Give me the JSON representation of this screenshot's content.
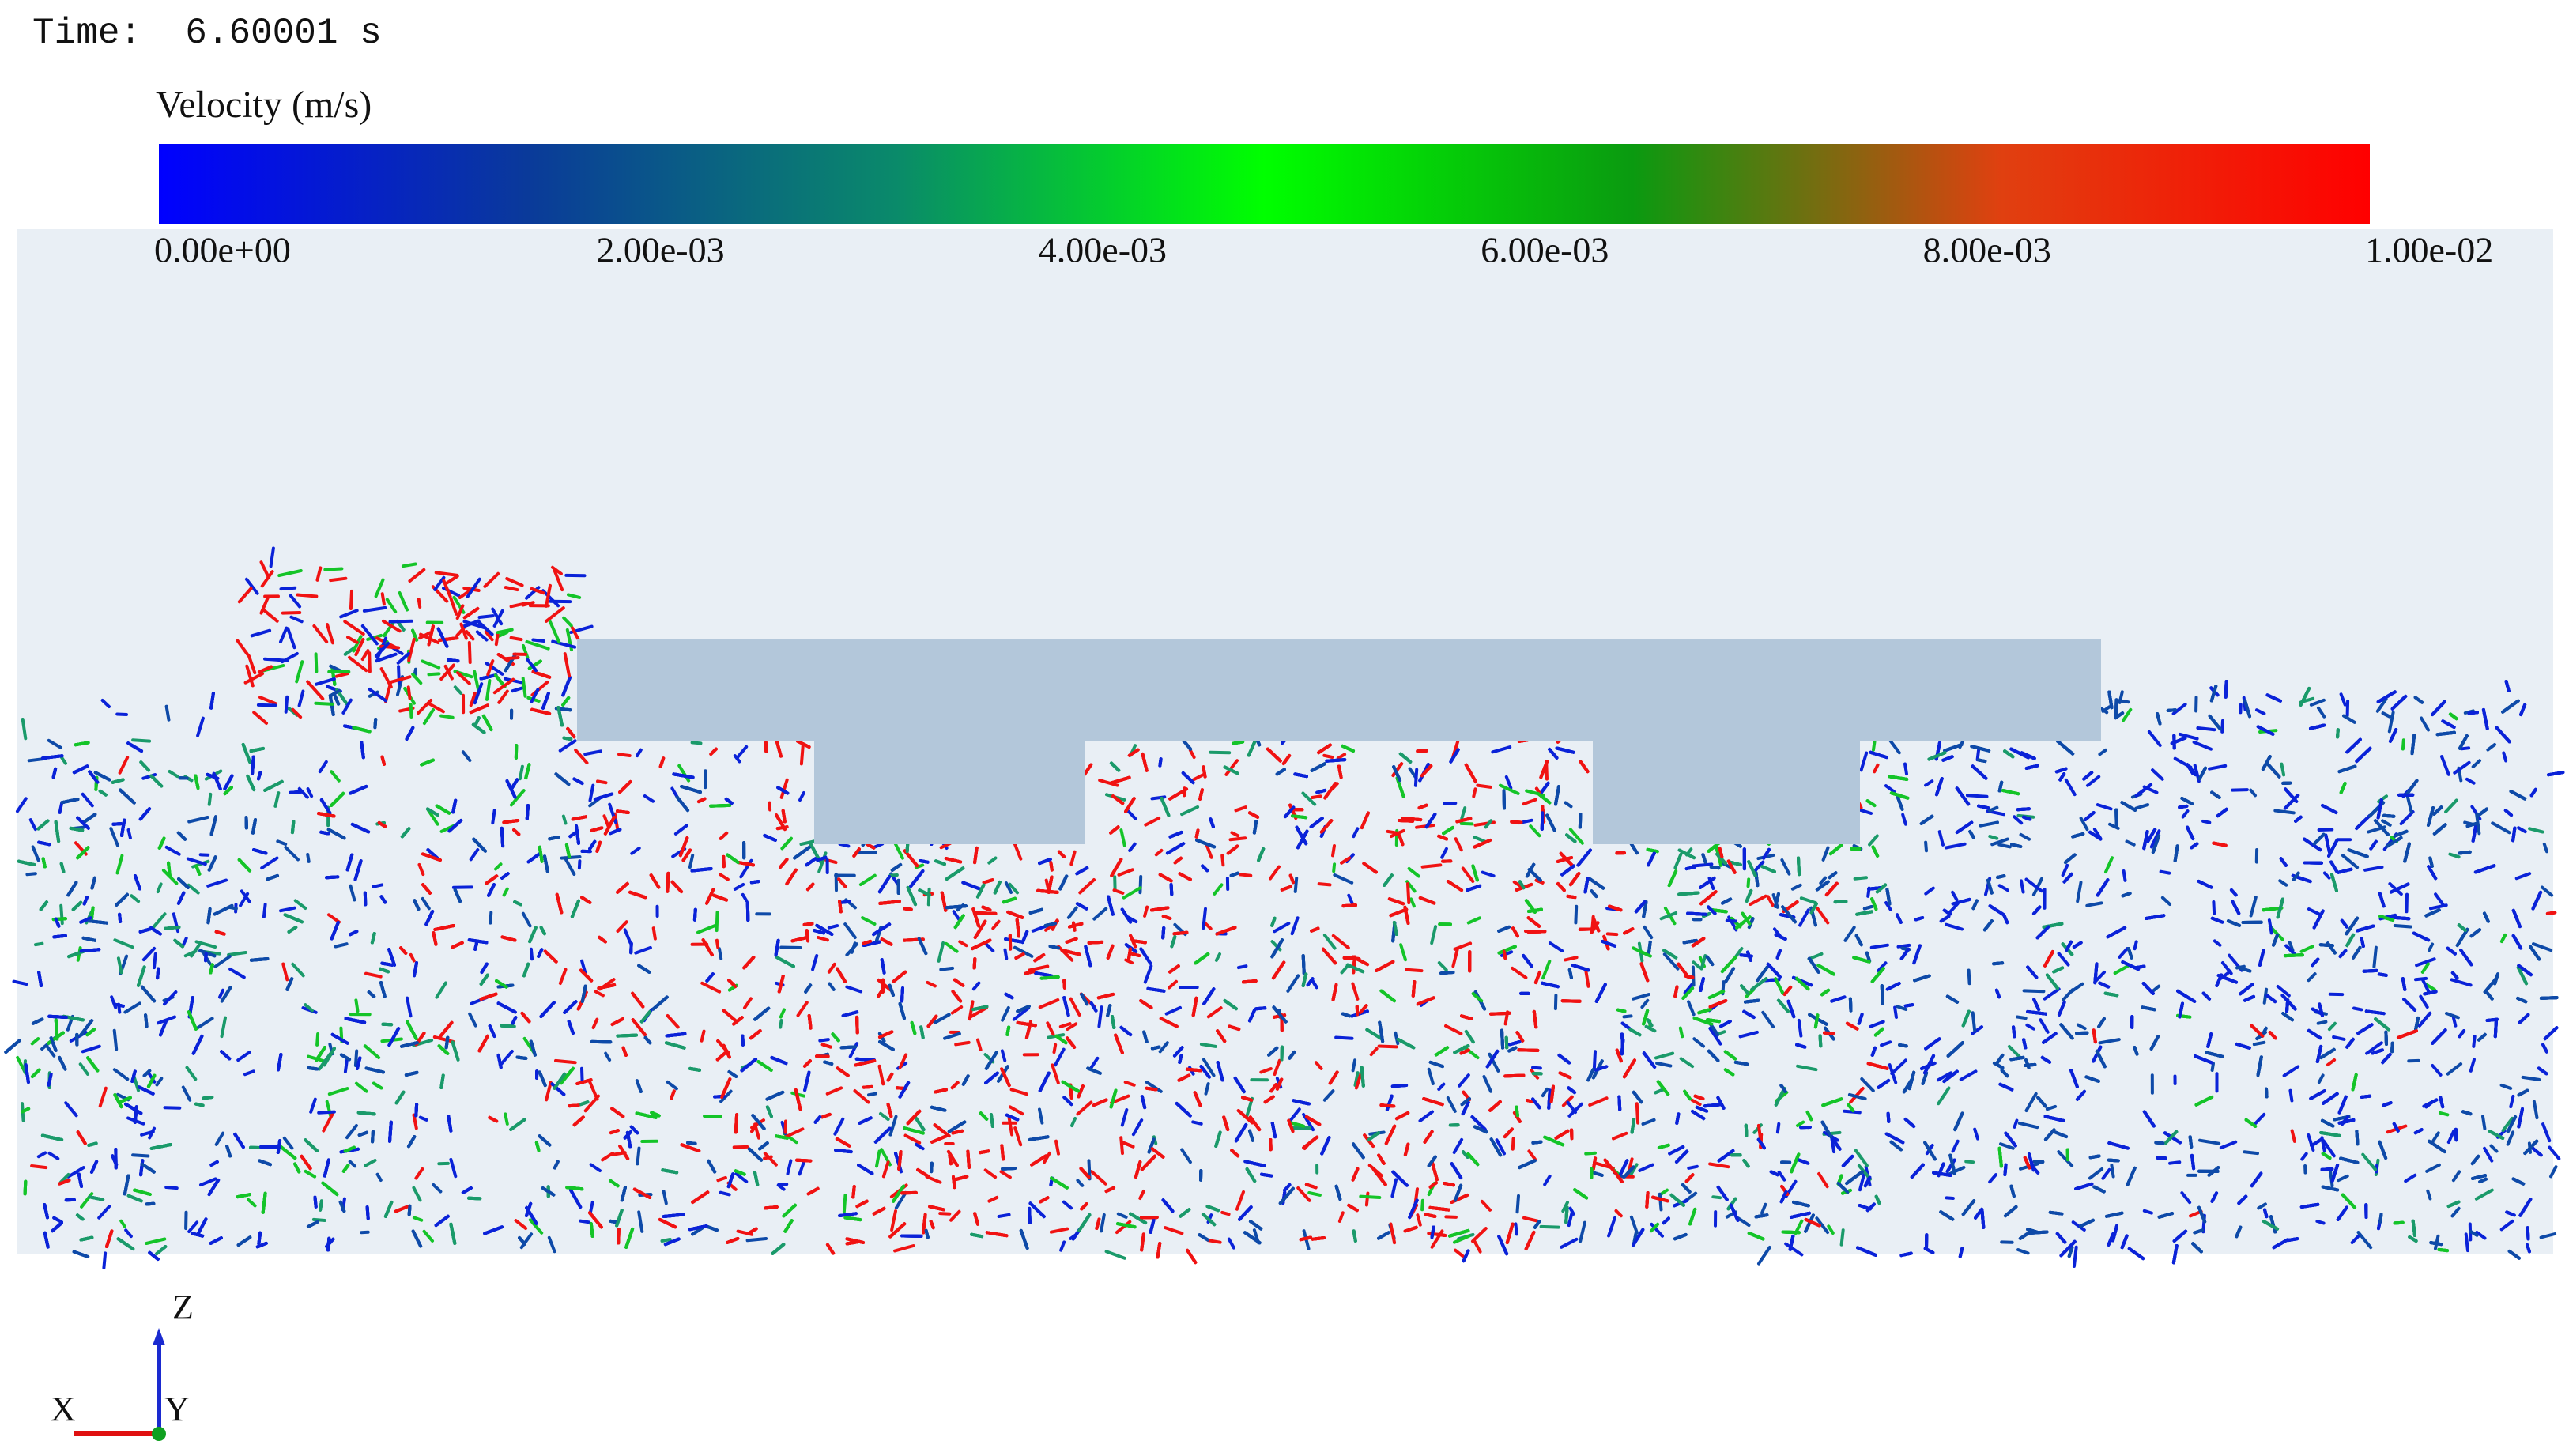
{
  "time_label": "Time:  6.60001 s",
  "colorbar": {
    "title": "Velocity (m/s)",
    "range": [
      0,
      0.01
    ],
    "colors": [
      "#0000ff",
      "#0a3a9a",
      "#0a8a6a",
      "#00ff00",
      "#0a9a10",
      "#e04010",
      "#ff0000"
    ],
    "ticks": [
      {
        "value": 0,
        "label": "0.00e+00"
      },
      {
        "value": 0.002,
        "label": "2.00e-03"
      },
      {
        "value": 0.004,
        "label": "4.00e-03"
      },
      {
        "value": 0.006,
        "label": "6.00e-03"
      },
      {
        "value": 0.008,
        "label": "8.00e-03"
      },
      {
        "value": 0.01,
        "label": "1.00e-02"
      }
    ]
  },
  "axes_triad": {
    "z": "Z",
    "x": "X",
    "y": "Y"
  }
}
